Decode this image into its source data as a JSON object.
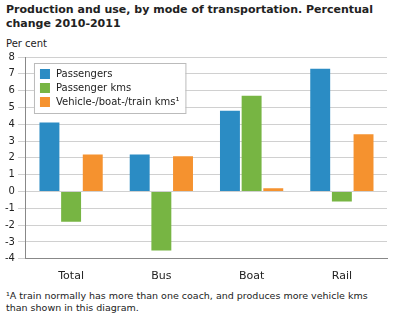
{
  "chart_data": {
    "type": "bar",
    "title": "Production and use, by mode of transportation. Percentual change 2010-2011",
    "y_label": "Per cent",
    "note": "¹A train normally has more than one coach, and produces more vehicle kms than shown in this diagram.",
    "categories": [
      "Total",
      "Bus",
      "Boat",
      "Rail"
    ],
    "series": [
      {
        "name": "Passengers",
        "color": "#2b8cc4",
        "values": [
          4.1,
          2.2,
          4.8,
          7.3
        ]
      },
      {
        "name": "Passenger kms",
        "color": "#77b543",
        "values": [
          -1.8,
          -3.5,
          5.7,
          -0.6
        ]
      },
      {
        "name": "Vehicle-/boat-/train kms¹",
        "color": "#f5922f",
        "values": [
          2.2,
          2.1,
          0.2,
          3.4
        ]
      }
    ],
    "ylim": [
      -4,
      8
    ],
    "yticks": [
      -4,
      -3,
      -2,
      -1,
      0,
      1,
      2,
      3,
      4,
      5,
      6,
      7,
      8
    ],
    "grid": true,
    "legend": "top-left"
  }
}
